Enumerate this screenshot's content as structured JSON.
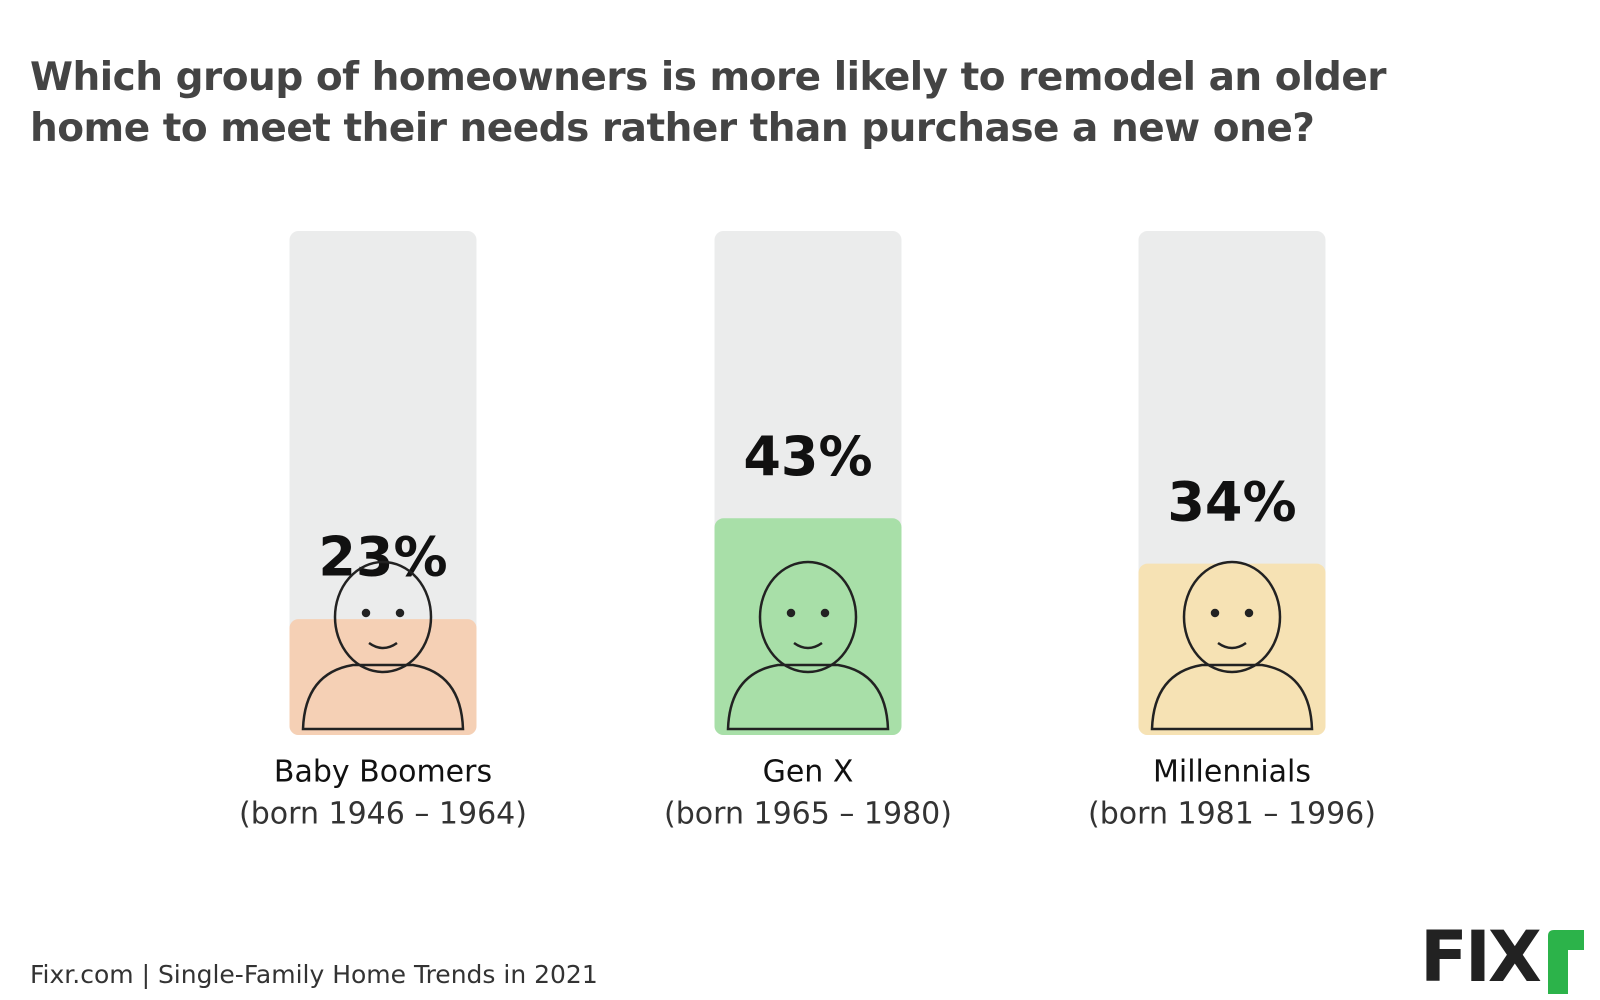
{
  "chart_data": {
    "type": "bar",
    "title": "Which group of homeowners is more likely to remodel an older home to meet their needs rather than purchase a new one?",
    "categories": [
      "Baby Boomers",
      "Gen X",
      "Millennials"
    ],
    "subtitles": [
      "(born 1946 – 1964)",
      "(born 1965 – 1980)",
      "(born 1981 – 1996)"
    ],
    "values": [
      23,
      43,
      34
    ],
    "value_labels": [
      "23%",
      "43%",
      "34%"
    ],
    "colors": [
      "#f5d0b5",
      "#a8dfa8",
      "#f6e2b4"
    ],
    "track_color": "#ebecec",
    "ylim": [
      0,
      100
    ],
    "source": "Fixr.com | Single-Family Home Trends in 2021",
    "logo": "FIX"
  }
}
